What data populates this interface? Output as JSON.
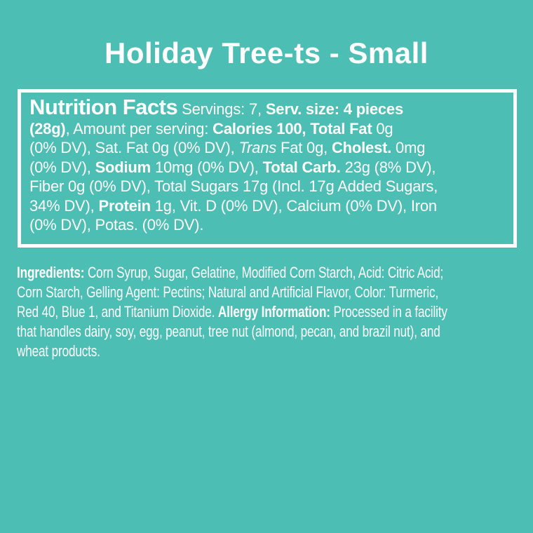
{
  "page": {
    "background_color": "#4CBEB4",
    "text_color": "#FFFFFF",
    "box_border_color": "#FFFFFF"
  },
  "header": {
    "title": "Holiday Tree-ts - Small"
  },
  "nutrition_facts": {
    "heading": "Nutrition Facts",
    "servings": "7",
    "serving_size": "4 pieces (28g)",
    "calories": "100",
    "total_fat": "0g (0% DV)",
    "sat_fat": "0g (0% DV)",
    "trans_fat": "0g",
    "cholesterol": "0mg (0% DV)",
    "sodium": "10mg (0% DV)",
    "total_carb": "23g (8% DV)",
    "fiber": "0g (0% DV)",
    "total_sugars": "17g (Incl. 17g Added Sugars, 34% DV)",
    "protein": "1g",
    "vitamin_d": "(0% DV)",
    "calcium": "(0% DV)",
    "iron": "(0% DV)",
    "potassium": "(0% DV)",
    "lines": [
      [
        {
          "t": "Nutrition Facts",
          "s": "hd"
        },
        {
          "t": " Servings: 7, ",
          "s": "r"
        },
        {
          "t": "Serv. size: 4 pieces",
          "s": "b"
        }
      ],
      [
        {
          "t": "(28g)",
          "s": "b"
        },
        {
          "t": ", Amount per serving: ",
          "s": "r"
        },
        {
          "t": "Calories 100, Total Fat",
          "s": "b"
        },
        {
          "t": " 0g",
          "s": "r"
        }
      ],
      [
        {
          "t": "(0% DV), Sat. Fat 0g (0% DV), ",
          "s": "r"
        },
        {
          "t": "Trans",
          "s": "i"
        },
        {
          "t": " Fat 0g, ",
          "s": "r"
        },
        {
          "t": "Cholest.",
          "s": "b"
        },
        {
          "t": " 0mg",
          "s": "r"
        }
      ],
      [
        {
          "t": "(0% DV), ",
          "s": "r"
        },
        {
          "t": "Sodium",
          "s": "b"
        },
        {
          "t": " 10mg (0% DV), ",
          "s": "r"
        },
        {
          "t": "Total Carb.",
          "s": "b"
        },
        {
          "t": " 23g (8% DV),",
          "s": "r"
        }
      ],
      [
        {
          "t": "Fiber 0g (0% DV), Total Sugars 17g (Incl. 17g Added Sugars,",
          "s": "r"
        }
      ],
      [
        {
          "t": "34% DV), ",
          "s": "r"
        },
        {
          "t": "Protein",
          "s": "b"
        },
        {
          "t": " 1g, Vit. D (0% DV), Calcium (0% DV), Iron",
          "s": "r"
        }
      ],
      [
        {
          "t": "(0% DV), Potas. (0% DV).",
          "s": "r"
        }
      ]
    ]
  },
  "ingredients": {
    "lines": [
      [
        {
          "t": "Ingredients:",
          "s": "b"
        },
        {
          "t": " Corn Syrup, Sugar, Gelatine, Modified Corn Starch, Acid: Citric Acid;",
          "s": "r"
        }
      ],
      [
        {
          "t": "Corn Starch, Gelling Agent: Pectins; Natural and Artificial Flavor, Color: Turmeric,",
          "s": "r"
        }
      ],
      [
        {
          "t": "Red 40, Blue 1, and Titanium Dioxide. ",
          "s": "r"
        },
        {
          "t": "Allergy Information:",
          "s": "b"
        },
        {
          "t": " Processed in a facility",
          "s": "r"
        }
      ],
      [
        {
          "t": "that handles dairy, soy, egg, peanut, tree nut (almond, pecan, and brazil nut), and",
          "s": "r"
        }
      ],
      [
        {
          "t": "wheat products.",
          "s": "r"
        }
      ]
    ]
  }
}
